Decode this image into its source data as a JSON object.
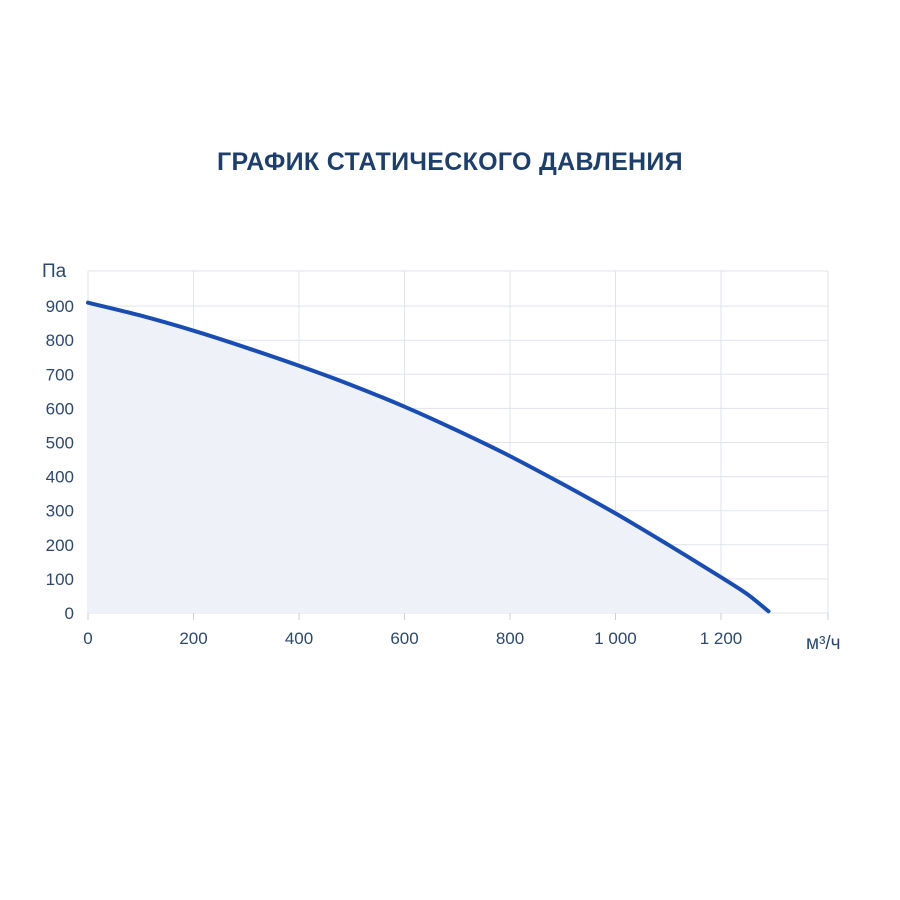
{
  "chart_data": {
    "type": "area",
    "title": "ГРАФИК СТАТИЧЕСКОГО ДАВЛЕНИЯ",
    "xlabel": "м³/ч",
    "ylabel": "Па",
    "xlim": [
      0,
      1400
    ],
    "ylim": [
      0,
      1000
    ],
    "x_ticks": [
      0,
      200,
      400,
      600,
      800,
      1000,
      1200
    ],
    "x_tick_labels": [
      "0",
      "200",
      "400",
      "600",
      "800",
      "1 000",
      "1 200"
    ],
    "y_ticks": [
      0,
      100,
      200,
      300,
      400,
      500,
      600,
      700,
      800,
      900
    ],
    "y_tick_labels": [
      "0",
      "100",
      "200",
      "300",
      "400",
      "500",
      "600",
      "700",
      "800",
      "900"
    ],
    "grid": true,
    "series": [
      {
        "x": [
          0,
          100,
          200,
          300,
          400,
          500,
          600,
          700,
          800,
          900,
          1000,
          1100,
          1200,
          1250,
          1290
        ],
        "values": [
          910,
          872,
          828,
          778,
          725,
          668,
          605,
          535,
          460,
          378,
          292,
          200,
          105,
          55,
          5
        ],
        "color": "#1a4db3",
        "fill": "#eef2f8"
      }
    ]
  }
}
